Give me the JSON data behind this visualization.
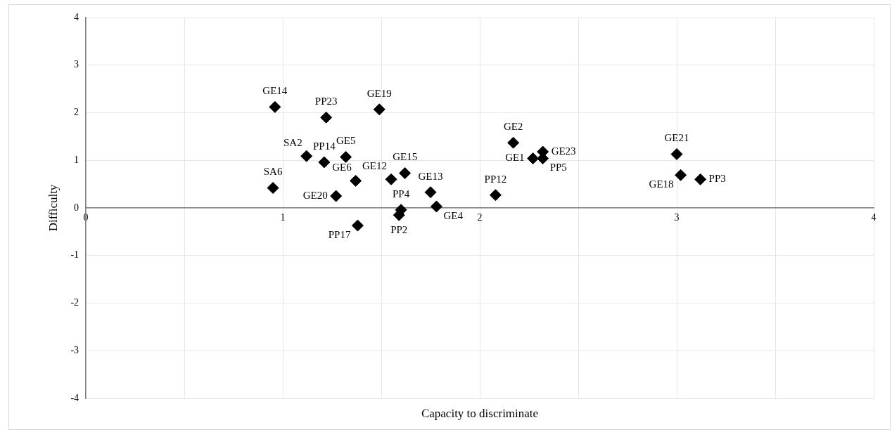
{
  "chart_data": {
    "type": "scatter",
    "xlabel": "Capacity to discriminate",
    "ylabel": "Difficulty",
    "x": [
      0.96,
      1.22,
      1.49,
      1.12,
      1.21,
      1.32,
      1.37,
      0.95,
      1.27,
      1.55,
      1.62,
      1.75,
      1.78,
      1.6,
      1.59,
      1.38,
      2.17,
      2.27,
      2.32,
      2.32,
      2.08,
      3.0,
      3.02,
      3.12
    ],
    "values": [
      2.12,
      1.9,
      2.07,
      1.09,
      0.96,
      1.07,
      0.57,
      0.42,
      0.25,
      0.6,
      0.73,
      0.33,
      0.03,
      -0.04,
      -0.15,
      -0.37,
      1.37,
      1.04,
      1.18,
      1.04,
      0.27,
      1.13,
      0.69,
      0.6
    ],
    "value_labels": [
      "GE14",
      "PP23",
      "GE19",
      "SA2",
      "PP14",
      "GE5",
      "GE6",
      "SA6",
      "GE20",
      "GE12",
      "GE15",
      "GE13",
      "GE4",
      "PP4",
      "PP2",
      "PP17",
      "GE2",
      "GE1",
      "GE23",
      "PP5",
      "PP12",
      "GE21",
      "GE18",
      "PP3"
    ],
    "color": "#000000",
    "marker": "diamond",
    "xlim": [
      0,
      4
    ],
    "xticks": [
      0,
      {
        "value": 0.5,
        "label": null
      },
      1,
      {
        "value": 1.5,
        "label": null
      },
      2,
      {
        "value": 2.5,
        "label": null
      },
      3,
      {
        "value": 3.5,
        "label": null
      },
      4
    ],
    "ylim": [
      -4,
      4
    ],
    "yticks": [
      -4,
      -3,
      -2,
      -1,
      0,
      1,
      2,
      3,
      4
    ],
    "grid": true,
    "legend": false
  }
}
